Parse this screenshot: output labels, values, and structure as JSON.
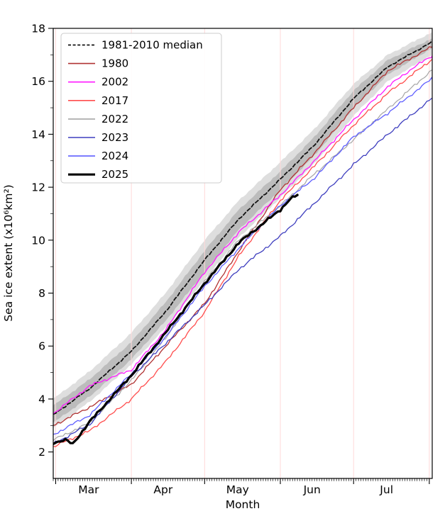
{
  "chart_data": {
    "type": "line",
    "title": "",
    "xlabel": "Month",
    "ylabel": "Sea ice extent (x10⁶km²)",
    "x_unit": "days since Feb 28",
    "xlim": [
      0,
      155.2
    ],
    "ylim": [
      1.0,
      18
    ],
    "grid": "vertical month lines only",
    "grid_color": "#ffd8d8",
    "yticks_major": [
      2,
      4,
      6,
      8,
      10,
      12,
      14,
      16,
      18
    ],
    "yticks_minor": [
      3,
      5,
      7,
      9,
      11,
      13,
      15,
      17
    ],
    "month_gridline_days": [
      1,
      32,
      62,
      93,
      123,
      154
    ],
    "month_labels": [
      {
        "label": "Mar",
        "day": 14.5
      },
      {
        "label": "Apr",
        "day": 45.0
      },
      {
        "label": "May",
        "day": 75.5
      },
      {
        "label": "Jun",
        "day": 106.0
      },
      {
        "label": "Jul",
        "day": 136.5
      }
    ],
    "bands": {
      "interdecile": {
        "color": "#dcdcdc",
        "hi": [
          [
            0,
            4.0
          ],
          [
            15,
            5.05
          ],
          [
            32,
            6.5
          ],
          [
            46,
            8.0
          ],
          [
            62,
            10.0
          ],
          [
            76,
            11.5
          ],
          [
            93,
            12.95
          ],
          [
            107,
            14.2
          ],
          [
            123,
            15.9
          ],
          [
            137,
            17.0
          ],
          [
            155,
            17.85
          ]
        ],
        "lo": [
          [
            0,
            2.9
          ],
          [
            15,
            3.9
          ],
          [
            32,
            5.3
          ],
          [
            46,
            6.7
          ],
          [
            62,
            8.5
          ],
          [
            76,
            10.1
          ],
          [
            93,
            11.6
          ],
          [
            107,
            12.9
          ],
          [
            123,
            14.7
          ],
          [
            137,
            16.0
          ],
          [
            155,
            17.0
          ]
        ]
      },
      "interquartile": {
        "color": "#b9b9b9",
        "hi": [
          [
            0,
            3.75
          ],
          [
            15,
            4.75
          ],
          [
            32,
            6.15
          ],
          [
            46,
            7.65
          ],
          [
            62,
            9.6
          ],
          [
            76,
            11.15
          ],
          [
            93,
            12.6
          ],
          [
            107,
            13.9
          ],
          [
            123,
            15.65
          ],
          [
            137,
            16.8
          ],
          [
            155,
            17.62
          ]
        ],
        "lo": [
          [
            0,
            3.1
          ],
          [
            15,
            4.1
          ],
          [
            32,
            5.5
          ],
          [
            46,
            6.95
          ],
          [
            62,
            8.8
          ],
          [
            76,
            10.4
          ],
          [
            93,
            11.9
          ],
          [
            107,
            13.2
          ],
          [
            123,
            15.0
          ],
          [
            137,
            16.25
          ],
          [
            155,
            17.25
          ]
        ]
      }
    },
    "series": [
      {
        "name": "1981-2010 median",
        "color": "#111111",
        "width": 1.8,
        "dash": "5,3.2",
        "points": [
          [
            0,
            3.4
          ],
          [
            15,
            4.4
          ],
          [
            32,
            5.8
          ],
          [
            46,
            7.3
          ],
          [
            62,
            9.25
          ],
          [
            76,
            10.8
          ],
          [
            93,
            12.3
          ],
          [
            107,
            13.6
          ],
          [
            123,
            15.35
          ],
          [
            137,
            16.55
          ],
          [
            155,
            17.48
          ]
        ]
      },
      {
        "name": "1980",
        "color": "#b03333",
        "width": 1.3,
        "dash": null,
        "points": [
          [
            0,
            3.0
          ],
          [
            15,
            3.7
          ],
          [
            32,
            4.55
          ],
          [
            46,
            6.0
          ],
          [
            62,
            7.6
          ],
          [
            76,
            9.6
          ],
          [
            93,
            11.9
          ],
          [
            107,
            13.3
          ],
          [
            123,
            15.0
          ],
          [
            137,
            16.4
          ],
          [
            155,
            17.3
          ]
        ]
      },
      {
        "name": "2002",
        "color": "#ff19ff",
        "width": 1.3,
        "dash": null,
        "points": [
          [
            0,
            3.45
          ],
          [
            15,
            4.5
          ],
          [
            32,
            5.1
          ],
          [
            46,
            6.6
          ],
          [
            62,
            8.8
          ],
          [
            76,
            10.3
          ],
          [
            93,
            11.7
          ],
          [
            107,
            13.0
          ],
          [
            123,
            14.55
          ],
          [
            137,
            15.8
          ],
          [
            148,
            16.55
          ],
          [
            155,
            16.95
          ]
        ]
      },
      {
        "name": "2017",
        "color": "#ff4d4d",
        "width": 1.3,
        "dash": null,
        "points": [
          [
            0,
            2.2
          ],
          [
            15,
            2.8
          ],
          [
            32,
            4.0
          ],
          [
            46,
            5.4
          ],
          [
            62,
            7.3
          ],
          [
            76,
            9.4
          ],
          [
            93,
            11.5
          ],
          [
            107,
            12.8
          ],
          [
            123,
            14.35
          ],
          [
            137,
            15.55
          ],
          [
            155,
            16.82
          ]
        ]
      },
      {
        "name": "2022",
        "color": "#a6a6a6",
        "width": 1.2,
        "dash": null,
        "points": [
          [
            0,
            2.45
          ],
          [
            15,
            3.1
          ],
          [
            32,
            4.7
          ],
          [
            46,
            6.3
          ],
          [
            62,
            8.45
          ],
          [
            76,
            10.0
          ],
          [
            93,
            11.3
          ],
          [
            107,
            12.5
          ],
          [
            123,
            13.8
          ],
          [
            137,
            14.95
          ],
          [
            155,
            16.42
          ]
        ]
      },
      {
        "name": "2023",
        "color": "#3f3fbf",
        "width": 1.3,
        "dash": null,
        "points": [
          [
            0,
            2.3
          ],
          [
            15,
            3.05
          ],
          [
            32,
            4.85
          ],
          [
            46,
            6.1
          ],
          [
            62,
            7.55
          ],
          [
            76,
            8.9
          ],
          [
            93,
            10.15
          ],
          [
            107,
            11.4
          ],
          [
            123,
            12.85
          ],
          [
            137,
            14.0
          ],
          [
            155,
            15.35
          ]
        ]
      },
      {
        "name": "2024",
        "color": "#5f5fff",
        "width": 1.3,
        "dash": null,
        "points": [
          [
            0,
            2.65
          ],
          [
            15,
            3.4
          ],
          [
            32,
            4.95
          ],
          [
            46,
            6.35
          ],
          [
            62,
            8.25
          ],
          [
            76,
            9.7
          ],
          [
            93,
            11.3
          ],
          [
            107,
            12.35
          ],
          [
            123,
            13.9
          ],
          [
            137,
            14.8
          ],
          [
            155,
            16.1
          ]
        ]
      },
      {
        "name": "2025",
        "color": "#000000",
        "width": 3.2,
        "dash": null,
        "points": [
          [
            0,
            2.35
          ],
          [
            5,
            2.45
          ],
          [
            8,
            2.3
          ],
          [
            15,
            3.15
          ],
          [
            32,
            4.9
          ],
          [
            46,
            6.5
          ],
          [
            62,
            8.37
          ],
          [
            76,
            9.9
          ],
          [
            93,
            11.15
          ],
          [
            97,
            11.55
          ],
          [
            100,
            11.7
          ]
        ]
      }
    ],
    "legend": {
      "position": "upper left",
      "entries": [
        "1981-2010 median",
        "1980",
        "2002",
        "2017",
        "2022",
        "2023",
        "2024",
        "2025"
      ]
    }
  }
}
